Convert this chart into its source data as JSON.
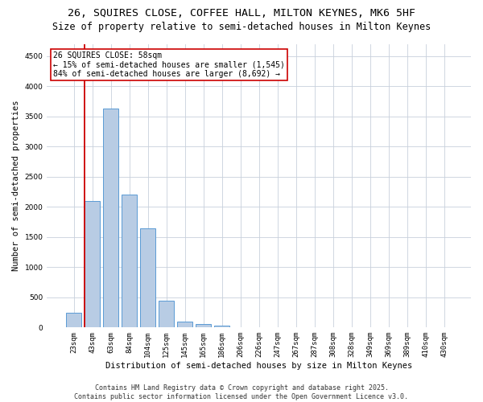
{
  "title1": "26, SQUIRES CLOSE, COFFEE HALL, MILTON KEYNES, MK6 5HF",
  "title2": "Size of property relative to semi-detached houses in Milton Keynes",
  "xlabel": "Distribution of semi-detached houses by size in Milton Keynes",
  "ylabel": "Number of semi-detached properties",
  "categories": [
    "23sqm",
    "43sqm",
    "63sqm",
    "84sqm",
    "104sqm",
    "125sqm",
    "145sqm",
    "165sqm",
    "186sqm",
    "206sqm",
    "226sqm",
    "247sqm",
    "267sqm",
    "287sqm",
    "308sqm",
    "328sqm",
    "349sqm",
    "369sqm",
    "389sqm",
    "410sqm",
    "430sqm"
  ],
  "values": [
    250,
    2100,
    3630,
    2200,
    1640,
    440,
    100,
    55,
    35,
    0,
    0,
    0,
    0,
    0,
    0,
    0,
    0,
    0,
    0,
    0,
    0
  ],
  "bar_color": "#b8cce4",
  "bar_edge_color": "#5b9bd5",
  "background_color": "#ffffff",
  "grid_color": "#c8d0dc",
  "annotation_title": "26 SQUIRES CLOSE: 58sqm",
  "annotation_line1": "← 15% of semi-detached houses are smaller (1,545)",
  "annotation_line2": "84% of semi-detached houses are larger (8,692) →",
  "vline_color": "#cc0000",
  "annotation_box_color": "#cc0000",
  "ylim": [
    0,
    4700
  ],
  "yticks": [
    0,
    500,
    1000,
    1500,
    2000,
    2500,
    3000,
    3500,
    4000,
    4500
  ],
  "footer1": "Contains HM Land Registry data © Crown copyright and database right 2025.",
  "footer2": "Contains public sector information licensed under the Open Government Licence v3.0.",
  "title_fontsize": 9.5,
  "subtitle_fontsize": 8.5,
  "axis_label_fontsize": 7.5,
  "tick_fontsize": 6.5,
  "annotation_fontsize": 7,
  "footer_fontsize": 6
}
